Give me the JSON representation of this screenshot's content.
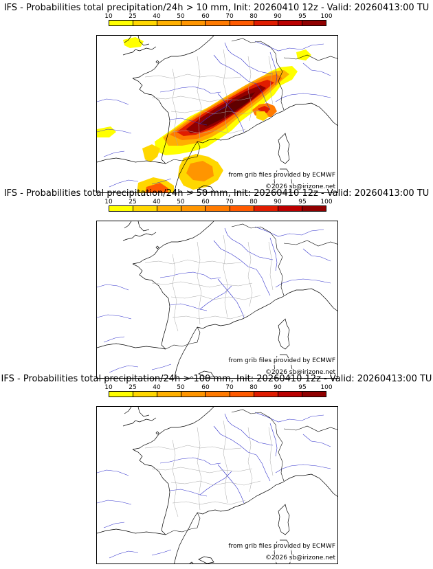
{
  "colorbar": {
    "labels": [
      "10",
      "25",
      "40",
      "50",
      "60",
      "70",
      "80",
      "90",
      "95",
      "100"
    ],
    "colors": [
      "#ffff00",
      "#ffd700",
      "#ffb000",
      "#ff9500",
      "#ff7a00",
      "#ff5a00",
      "#e01c00",
      "#bb0000",
      "#900000",
      "#600000"
    ]
  },
  "panels": [
    {
      "title": "IFS - Probabilities total precipitation/24h > 10 mm, Init: 20260410 12z - Valid: 20260413:00 TU",
      "credit_source": "from grib files provided by ECMWF",
      "credit_author": "©2026 sb@irizone.net"
    },
    {
      "title": "IFS - Probabilities total precipitation/24h > 50 mm, Init: 20260410 12z - Valid: 20260413:00 TU",
      "credit_source": "from grib files provided by ECMWF",
      "credit_author": "©2026 sb@irizone.net"
    },
    {
      "title": "IFS - Probabilities total precipitation/24h > 100 mm, Init: 20260410 12z - Valid: 20260413:00 TU",
      "credit_source": "from grib files provided by ECMWF",
      "credit_author": "©2026 sb@irizone.net"
    }
  ],
  "map_colors": {
    "coast": "#000000",
    "rivers": "#3333cc",
    "borders": "#a8a8a8"
  }
}
